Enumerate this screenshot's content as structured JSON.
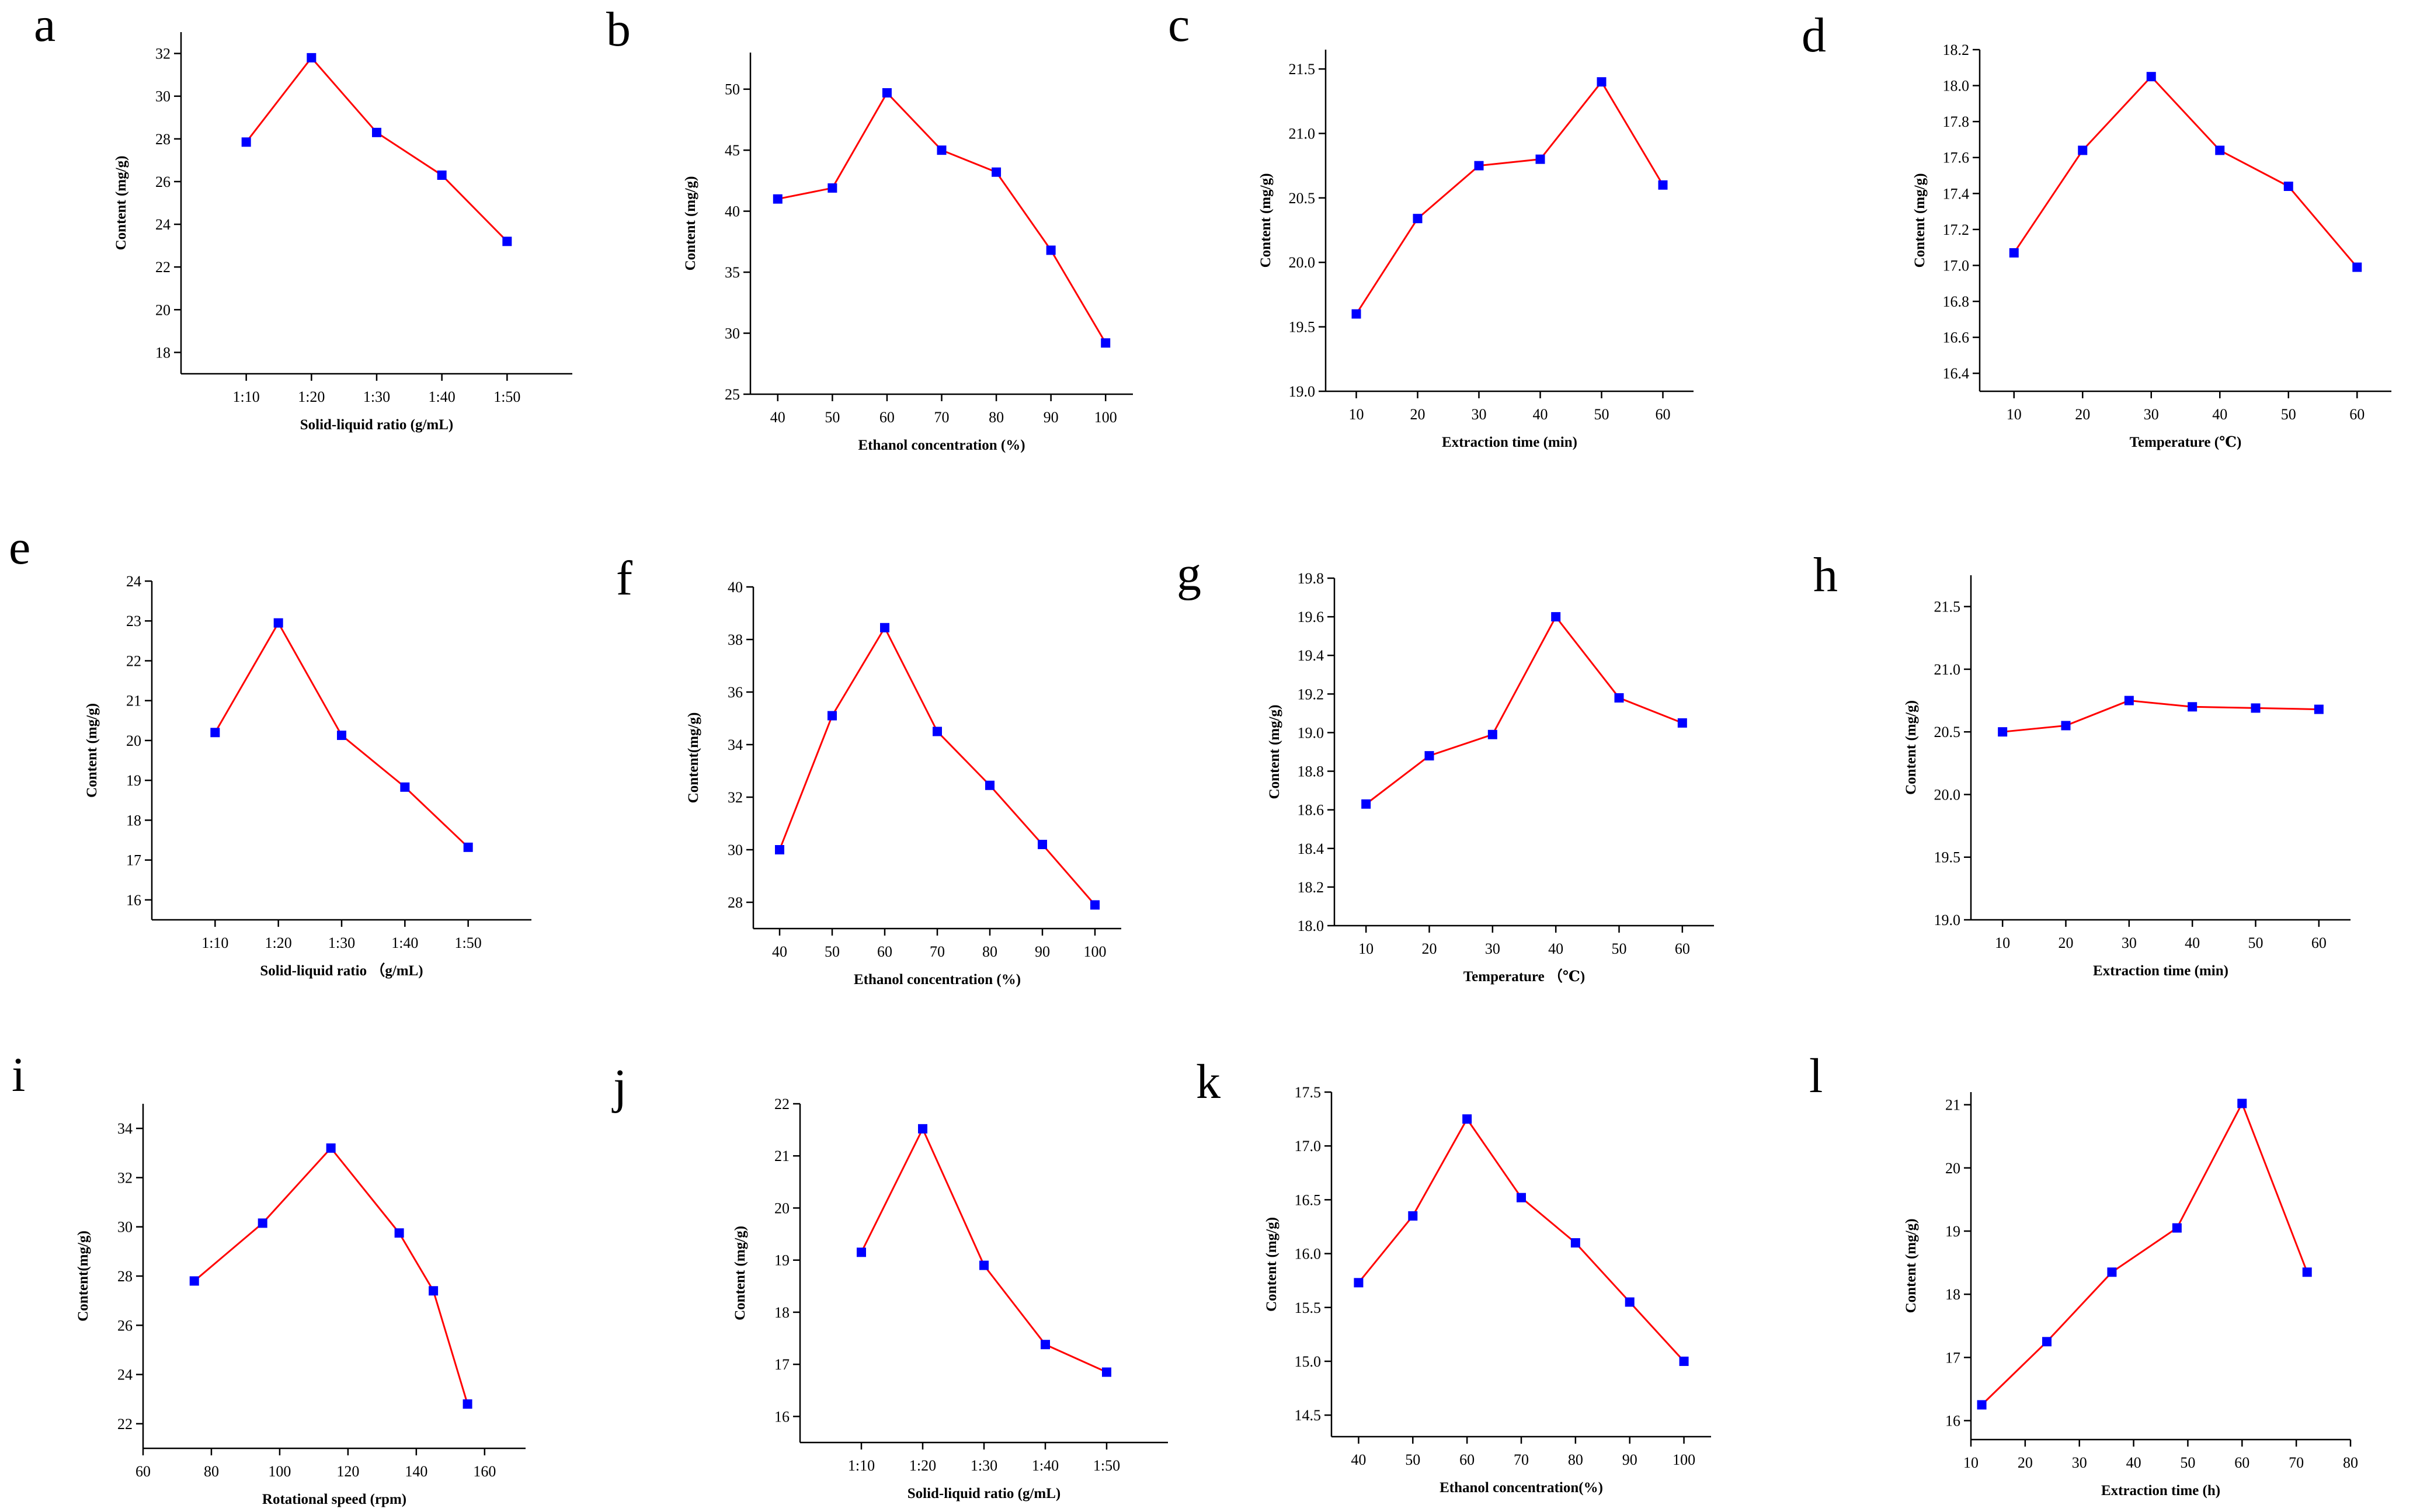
{
  "figure": {
    "colors": {
      "line": "#ff0000",
      "marker": "#0000ff",
      "axis": "#000000"
    }
  },
  "chart_data": [
    {
      "panel": "a",
      "type": "line",
      "xlabel": "Solid-liquid ratio (g/mL)",
      "ylabel": "Content (mg/g)",
      "categories": [
        "1:10",
        "1:20",
        "1:30",
        "1:40",
        "1:50"
      ],
      "values": [
        27.85,
        31.8,
        28.3,
        26.3,
        23.2
      ],
      "ylim": [
        17,
        33
      ],
      "yticks": [
        18,
        20,
        22,
        24,
        26,
        28,
        30,
        32
      ],
      "grid": false
    },
    {
      "panel": "b",
      "type": "line",
      "xlabel": "Ethanol concentration (%)",
      "ylabel": "Content (mg/g)",
      "x": [
        40,
        50,
        60,
        70,
        80,
        90,
        100
      ],
      "values": [
        41.0,
        41.9,
        49.7,
        45.0,
        43.2,
        36.8,
        29.2
      ],
      "xlim": [
        35,
        105
      ],
      "xticks": [
        40,
        50,
        60,
        70,
        80,
        90,
        100
      ],
      "ylim": [
        25,
        53
      ],
      "yticks": [
        25,
        30,
        35,
        40,
        45,
        50
      ],
      "grid": false
    },
    {
      "panel": "c",
      "type": "line",
      "xlabel": "Extraction time (min)",
      "ylabel": "Content (mg/g)",
      "x": [
        10,
        20,
        30,
        40,
        50,
        60
      ],
      "values": [
        19.6,
        20.34,
        20.75,
        20.8,
        21.4,
        20.6
      ],
      "xlim": [
        5,
        65
      ],
      "xticks": [
        10,
        20,
        30,
        40,
        50,
        60
      ],
      "ylim": [
        19.0,
        21.65
      ],
      "yticks": [
        19.0,
        19.5,
        20.0,
        20.5,
        21.0,
        21.5
      ],
      "grid": false
    },
    {
      "panel": "d",
      "type": "line",
      "xlabel": "Temperature (℃)",
      "ylabel": "Content (mg/g)",
      "x": [
        10,
        20,
        30,
        40,
        50,
        60
      ],
      "values": [
        17.07,
        17.64,
        18.05,
        17.64,
        17.44,
        16.99
      ],
      "xlim": [
        5,
        65
      ],
      "xticks": [
        10,
        20,
        30,
        40,
        50,
        60
      ],
      "ylim": [
        16.3,
        18.2
      ],
      "yticks": [
        16.4,
        16.6,
        16.8,
        17.0,
        17.2,
        17.4,
        17.6,
        17.8,
        18.0,
        18.2
      ],
      "grid": false
    },
    {
      "panel": "e",
      "type": "line",
      "xlabel": "Solid-liquid ratio （g/mL)",
      "ylabel": "Content (mg/g)",
      "categories": [
        "1:10",
        "1:20",
        "1:30",
        "1:40",
        "1:50"
      ],
      "values": [
        20.2,
        22.95,
        20.13,
        18.83,
        17.32
      ],
      "ylim": [
        15.5,
        24
      ],
      "yticks": [
        16,
        17,
        18,
        19,
        20,
        21,
        22,
        23,
        24
      ],
      "grid": false
    },
    {
      "panel": "f",
      "type": "line",
      "xlabel": "Ethanol concentration (%)",
      "ylabel": "Content(mg/g)",
      "x": [
        40,
        50,
        60,
        70,
        80,
        90,
        100
      ],
      "values": [
        30.0,
        35.1,
        38.45,
        34.5,
        32.45,
        30.2,
        27.9
      ],
      "xlim": [
        35,
        105
      ],
      "xticks": [
        40,
        50,
        60,
        70,
        80,
        90,
        100
      ],
      "ylim": [
        27,
        40
      ],
      "yticks": [
        28,
        30,
        32,
        34,
        36,
        38,
        40
      ],
      "grid": false
    },
    {
      "panel": "g",
      "type": "line",
      "xlabel": "Temperature （℃)",
      "ylabel": "Content (mg/g)",
      "x": [
        10,
        20,
        30,
        40,
        50,
        60
      ],
      "values": [
        18.63,
        18.88,
        18.99,
        19.6,
        19.18,
        19.05
      ],
      "xlim": [
        5,
        65
      ],
      "xticks": [
        10,
        20,
        30,
        40,
        50,
        60
      ],
      "ylim": [
        18.0,
        19.8
      ],
      "yticks": [
        18.0,
        18.2,
        18.4,
        18.6,
        18.8,
        19.0,
        19.2,
        19.4,
        19.6,
        19.8
      ],
      "grid": false
    },
    {
      "panel": "h",
      "type": "line",
      "xlabel": "Extraction time (min)",
      "ylabel": "Content (mg/g)",
      "x": [
        10,
        20,
        30,
        40,
        50,
        60
      ],
      "values": [
        20.5,
        20.55,
        20.75,
        20.7,
        20.69,
        20.68
      ],
      "xlim": [
        5,
        65
      ],
      "xticks": [
        10,
        20,
        30,
        40,
        50,
        60
      ],
      "ylim": [
        19.0,
        21.75
      ],
      "yticks": [
        19.0,
        19.5,
        20.0,
        20.5,
        21.0,
        21.5
      ],
      "grid": false
    },
    {
      "panel": "i",
      "type": "line",
      "xlabel": "Rotational speed (rpm)",
      "ylabel": "Content(mg/g)",
      "x": [
        75,
        95,
        115,
        135,
        145,
        155
      ],
      "values": [
        27.8,
        30.15,
        33.2,
        29.75,
        27.4,
        22.8
      ],
      "xlim": [
        60,
        172
      ],
      "xticks": [
        60,
        80,
        100,
        120,
        140,
        160
      ],
      "ylim": [
        21,
        35
      ],
      "yticks": [
        22,
        24,
        26,
        28,
        30,
        32,
        34
      ],
      "grid": false
    },
    {
      "panel": "j",
      "type": "line",
      "xlabel": "Solid-liquid ratio (g/mL)",
      "ylabel": "Content (mg/g)",
      "categories": [
        "1:10",
        "1:20",
        "1:30",
        "1:40",
        "1:50"
      ],
      "values": [
        19.15,
        21.52,
        18.9,
        17.38,
        16.85
      ],
      "ylim": [
        15.5,
        22
      ],
      "yticks": [
        16,
        17,
        18,
        19,
        20,
        21,
        22
      ],
      "grid": false
    },
    {
      "panel": "k",
      "type": "line",
      "xlabel": "Ethanol concentration(%)",
      "ylabel": "Content (mg/g)",
      "x": [
        40,
        50,
        60,
        70,
        80,
        90,
        100
      ],
      "values": [
        15.73,
        16.35,
        17.25,
        16.52,
        16.1,
        15.55,
        15.0
      ],
      "xlim": [
        35,
        105
      ],
      "xticks": [
        40,
        50,
        60,
        70,
        80,
        90,
        100
      ],
      "ylim": [
        14.3,
        17.5
      ],
      "yticks": [
        14.5,
        15.0,
        15.5,
        16.0,
        16.5,
        17.0,
        17.5
      ],
      "grid": false
    },
    {
      "panel": "l",
      "type": "line",
      "xlabel": "Extraction time (h)",
      "ylabel": "Content (mg/g)",
      "x": [
        12,
        24,
        36,
        48,
        60,
        72
      ],
      "values": [
        16.25,
        17.25,
        18.35,
        19.05,
        21.02,
        18.35
      ],
      "xlim": [
        10,
        80
      ],
      "xticks": [
        10,
        20,
        30,
        40,
        50,
        60,
        70,
        80
      ],
      "ylim": [
        15.7,
        21.2
      ],
      "yticks": [
        16,
        17,
        18,
        19,
        20,
        21
      ],
      "grid": false
    }
  ]
}
